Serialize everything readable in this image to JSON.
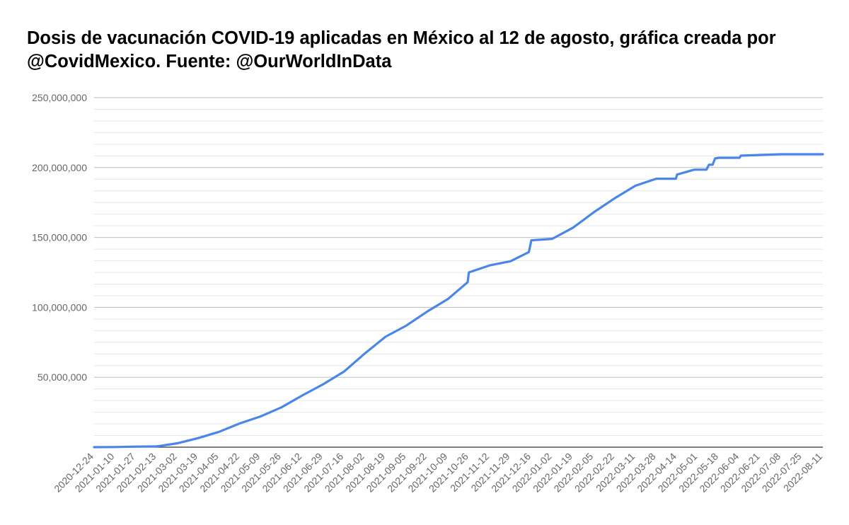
{
  "chart_data": {
    "type": "line",
    "title": "Dosis de vacunación COVID-19 aplicadas en México al 12 de agosto, gráfica creada por @CovidMexico. Fuente: @OurWorldInData",
    "xlabel": "",
    "ylabel": "",
    "ylim": [
      0,
      250000000
    ],
    "y_ticks": [
      0,
      50000000,
      100000000,
      150000000,
      200000000,
      250000000
    ],
    "y_tick_labels": [
      "",
      "50,000,000",
      "100,000,000",
      "150,000,000",
      "200,000,000",
      "250,000,000"
    ],
    "minor_gridlines_per_major": 6,
    "grid": true,
    "legend": "none",
    "x_tick_labels": [
      "2020-12-24",
      "2021-01-10",
      "2021-01-27",
      "2021-02-13",
      "2021-03-02",
      "2021-03-19",
      "2021-04-05",
      "2021-04-22",
      "2021-05-09",
      "2021-05-26",
      "2021-06-12",
      "2021-06-29",
      "2021-07-16",
      "2021-08-02",
      "2021-08-19",
      "2021-09-05",
      "2021-09-22",
      "2021-10-09",
      "2021-10-26",
      "2021-11-12",
      "2021-11-29",
      "2021-12-16",
      "2022-01-02",
      "2022-01-19",
      "2022-02-05",
      "2022-02-22",
      "2022-03-11",
      "2022-03-28",
      "2022-04-14",
      "2022-05-01",
      "2022-05-18",
      "2022-06-04",
      "2022-06-21",
      "2022-07-08",
      "2022-07-25",
      "2022-08-11"
    ],
    "series": [
      {
        "color": "#4a86e8",
        "x": [
          "2020-12-24",
          "2021-01-10",
          "2021-01-27",
          "2021-02-13",
          "2021-02-15",
          "2021-03-02",
          "2021-03-19",
          "2021-04-05",
          "2021-04-22",
          "2021-05-09",
          "2021-05-26",
          "2021-06-12",
          "2021-06-29",
          "2021-07-16",
          "2021-08-02",
          "2021-08-19",
          "2021-09-05",
          "2021-09-22",
          "2021-10-09",
          "2021-10-25",
          "2021-10-26",
          "2021-11-12",
          "2021-11-29",
          "2021-12-14",
          "2021-12-16",
          "2022-01-02",
          "2022-01-19",
          "2022-02-05",
          "2022-02-22",
          "2022-03-11",
          "2022-03-28",
          "2022-04-13",
          "2022-04-14",
          "2022-04-28",
          "2022-05-01",
          "2022-05-08",
          "2022-05-10",
          "2022-05-13",
          "2022-05-15",
          "2022-05-18",
          "2022-06-04",
          "2022-06-05",
          "2022-06-21",
          "2022-07-08",
          "2022-07-25",
          "2022-08-11"
        ],
        "y": [
          0,
          100000,
          400000,
          600000,
          800000,
          2800000,
          6500000,
          11000000,
          17000000,
          22000000,
          28500000,
          37000000,
          45000000,
          54000000,
          67000000,
          79000000,
          87000000,
          97000000,
          106000000,
          118000000,
          125000000,
          130000000,
          133000000,
          139500000,
          148000000,
          149000000,
          157000000,
          168000000,
          178000000,
          187000000,
          192000000,
          192000000,
          195000000,
          198500000,
          198500000,
          198500000,
          202000000,
          202000000,
          206500000,
          207000000,
          207000000,
          208500000,
          209000000,
          209500000,
          209500000,
          209500000
        ]
      }
    ]
  }
}
